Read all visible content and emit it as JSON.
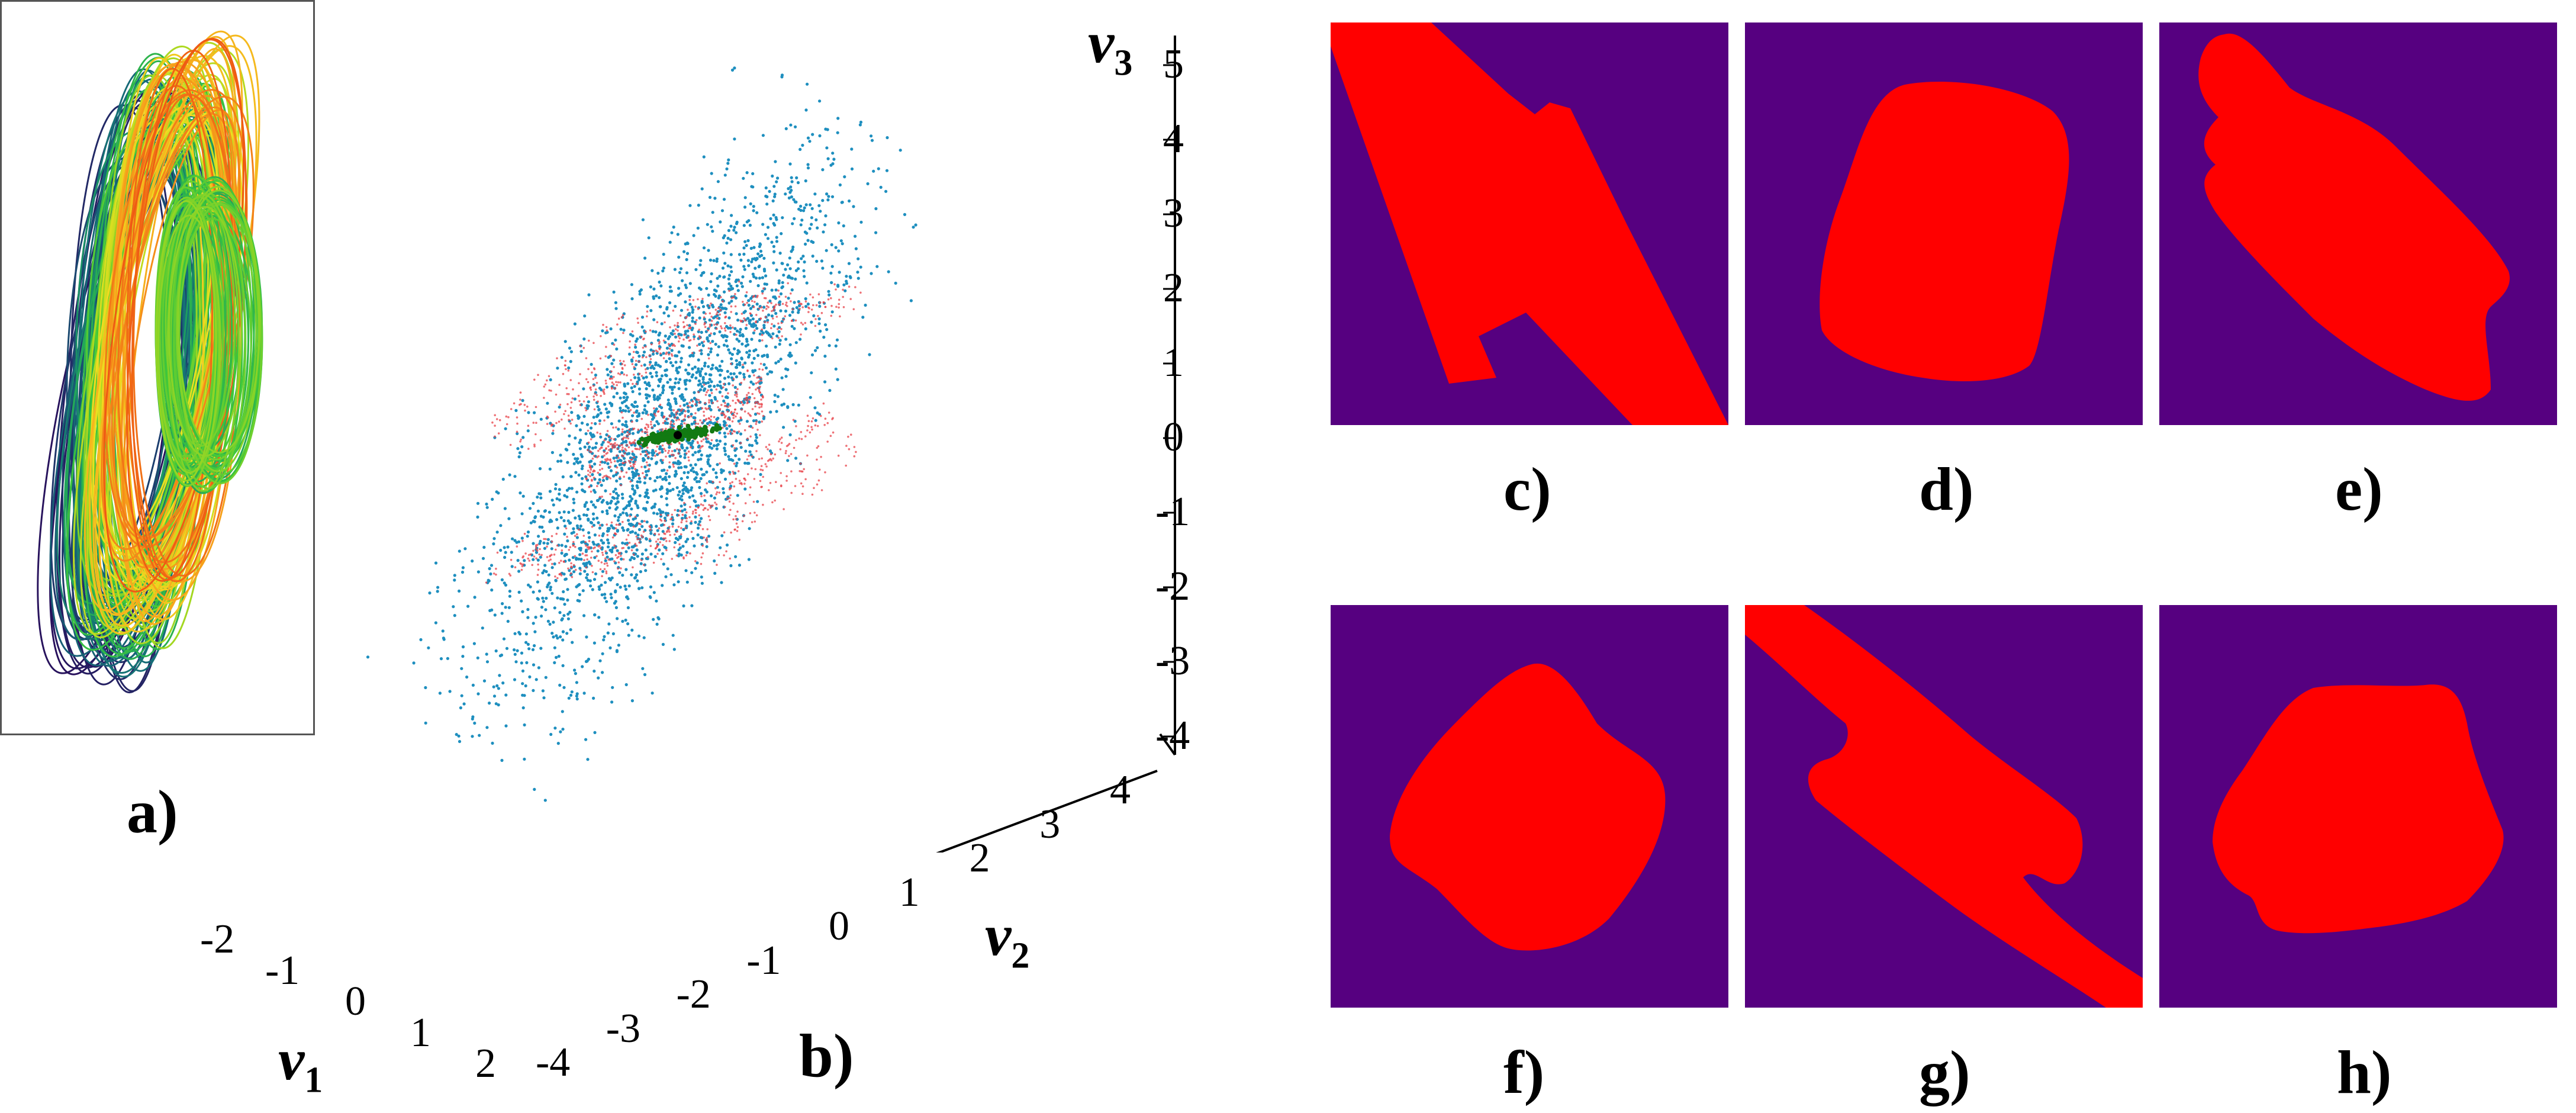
{
  "labels": {
    "a": "a)",
    "b": "b)",
    "c": "c)",
    "d": "d)",
    "e": "e)",
    "f": "f)",
    "g": "g)",
    "h": "h)"
  },
  "axis3d": {
    "v3": {
      "name": "v",
      "sub": "3",
      "ticks": [
        "5",
        "4",
        "3",
        "2",
        "1",
        "0",
        "-1",
        "-2",
        "-3",
        "-4"
      ]
    },
    "v2": {
      "name": "v",
      "sub": "2",
      "ticks": [
        "-4",
        "-3",
        "-2",
        "-1",
        "0",
        "1",
        "2",
        "3",
        "4"
      ]
    },
    "v1": {
      "name": "v",
      "sub": "1",
      "ticks": [
        "-2",
        "-1",
        "0",
        "1",
        "2"
      ]
    }
  },
  "colors": {
    "basin_background": "#560080",
    "basin_fill": "#ff0000",
    "scatter_outer": "#1e8fbf",
    "scatter_middle": "#e8434a",
    "scatter_core": "#127a12",
    "frame": "#555555"
  }
}
